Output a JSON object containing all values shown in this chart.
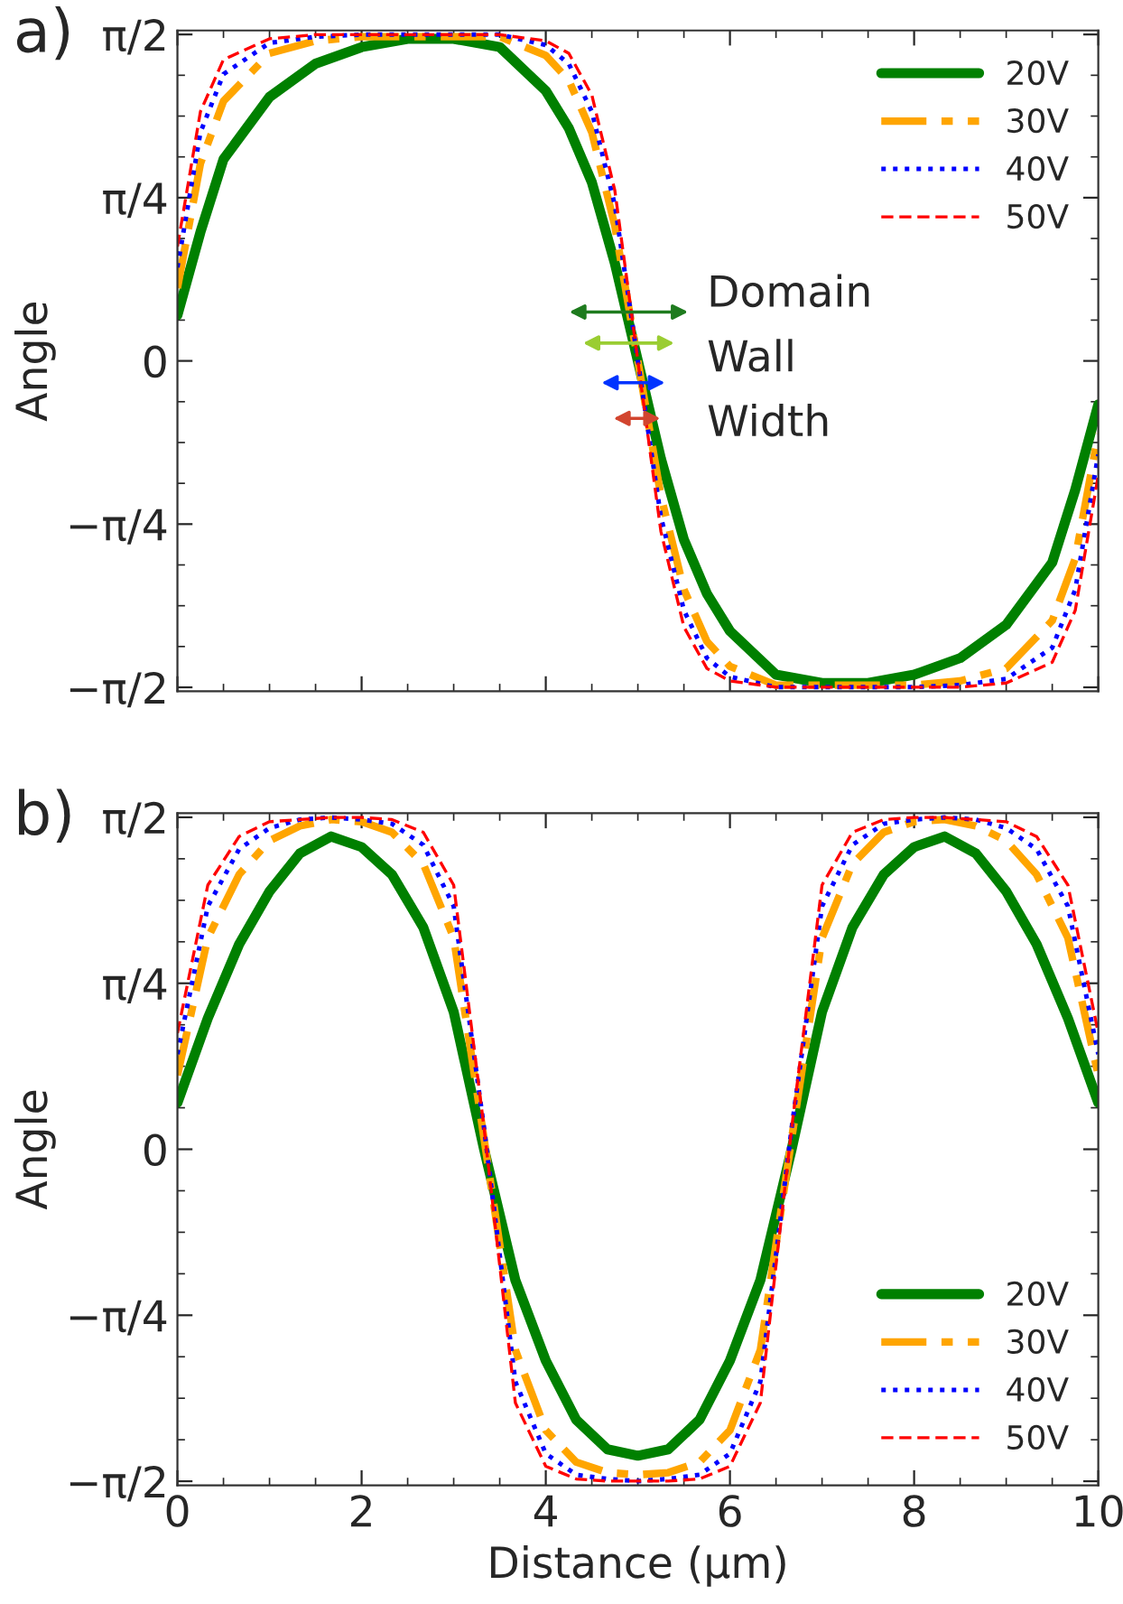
{
  "chart_data": [
    {
      "type": "line",
      "annotations": [
        "a)",
        "Domain",
        "Wall",
        "Width"
      ],
      "ylabel": "Angle",
      "xlim": [
        0,
        10
      ],
      "xticks": [
        0,
        2,
        4,
        6,
        8,
        10
      ],
      "ylim": [
        -1.59,
        1.59
      ],
      "yticks": [
        {
          "value": -1.5708,
          "label": "−π/2"
        },
        {
          "value": -0.7854,
          "label": "−π/4"
        },
        0,
        {
          "value": 0.7854,
          "label": "π/4"
        },
        {
          "value": 1.5708,
          "label": "π/2"
        }
      ],
      "tick_labels": "y",
      "legend": "top right",
      "grid": false,
      "x": [
        0,
        0.25,
        0.5,
        1,
        1.5,
        2,
        2.5,
        3,
        3.5,
        4,
        4.25,
        4.5,
        4.75,
        5,
        5.25,
        5.5,
        5.75,
        6,
        6.5,
        7,
        7.5,
        8,
        8.5,
        9,
        9.5,
        9.75,
        10
      ],
      "series": [
        {
          "name": "20V",
          "color": "#008000",
          "line_style": "solid",
          "values": [
            0.22,
            0.62,
            0.97,
            1.27,
            1.43,
            1.51,
            1.55,
            1.55,
            1.51,
            1.3,
            1.12,
            0.86,
            0.47,
            0,
            -0.47,
            -0.86,
            -1.12,
            -1.3,
            -1.51,
            -1.55,
            -1.55,
            -1.51,
            -1.43,
            -1.27,
            -0.97,
            -0.62,
            -0.21
          ]
        },
        {
          "name": "30V",
          "color": "#ffa500",
          "line_style": "dashdot",
          "values": [
            0.35,
            0.95,
            1.25,
            1.48,
            1.54,
            1.56,
            1.56,
            1.56,
            1.56,
            1.47,
            1.35,
            1.1,
            0.65,
            0,
            -0.65,
            -1.1,
            -1.35,
            -1.47,
            -1.56,
            -1.56,
            -1.56,
            -1.56,
            -1.54,
            -1.48,
            -1.25,
            -0.95,
            -0.35
          ]
        },
        {
          "name": "40V",
          "color": "#0000ff",
          "line_style": "dotted",
          "values": [
            0.45,
            1.1,
            1.38,
            1.53,
            1.56,
            1.57,
            1.57,
            1.57,
            1.57,
            1.52,
            1.43,
            1.2,
            0.75,
            0,
            -0.75,
            -1.2,
            -1.43,
            -1.52,
            -1.57,
            -1.57,
            -1.57,
            -1.57,
            -1.56,
            -1.53,
            -1.38,
            -1.1,
            -0.45
          ]
        },
        {
          "name": "50V",
          "color": "#ff0000",
          "line_style": "dashed",
          "values": [
            0.55,
            1.2,
            1.45,
            1.55,
            1.57,
            1.57,
            1.57,
            1.57,
            1.57,
            1.54,
            1.48,
            1.28,
            0.82,
            0,
            -0.82,
            -1.28,
            -1.48,
            -1.54,
            -1.57,
            -1.57,
            -1.57,
            -1.57,
            -1.57,
            -1.55,
            -1.45,
            -1.2,
            -0.55
          ]
        }
      ]
    },
    {
      "type": "line",
      "annotations": [
        "b)"
      ],
      "ylabel": "Angle",
      "xlabel": "Distance (μm)",
      "xlim": [
        0,
        10
      ],
      "xticks": [
        0,
        2,
        4,
        6,
        8,
        10
      ],
      "ylim": [
        -1.59,
        1.59
      ],
      "yticks": [
        {
          "value": -1.5708,
          "label": "−π/2"
        },
        {
          "value": -0.7854,
          "label": "−π/4"
        },
        0,
        {
          "value": 0.7854,
          "label": "π/4"
        },
        {
          "value": 1.5708,
          "label": "π/2"
        }
      ],
      "legend": "bottom right",
      "grid": false,
      "x": [
        0,
        0.33,
        0.67,
        1,
        1.33,
        1.67,
        2,
        2.33,
        2.67,
        3,
        3.33,
        3.67,
        4,
        4.33,
        4.67,
        5,
        5.33,
        5.67,
        6,
        6.33,
        6.67,
        7,
        7.33,
        7.67,
        8,
        8.33,
        8.67,
        9,
        9.33,
        9.67,
        10
      ],
      "series": [
        {
          "name": "20V",
          "color": "#008000",
          "line_style": "solid",
          "values": [
            0.22,
            0.62,
            0.97,
            1.22,
            1.4,
            1.48,
            1.43,
            1.3,
            1.05,
            0.65,
            0,
            -0.62,
            -1.0,
            -1.28,
            -1.42,
            -1.45,
            -1.42,
            -1.28,
            -1.0,
            -0.62,
            0,
            0.65,
            1.05,
            1.3,
            1.43,
            1.48,
            1.4,
            1.22,
            0.97,
            0.62,
            0.22
          ]
        },
        {
          "name": "30V",
          "color": "#ffa500",
          "line_style": "dashdot",
          "values": [
            0.35,
            1.0,
            1.3,
            1.46,
            1.53,
            1.56,
            1.55,
            1.5,
            1.35,
            1.0,
            0.05,
            -0.95,
            -1.33,
            -1.48,
            -1.53,
            -1.54,
            -1.53,
            -1.48,
            -1.33,
            -0.95,
            0.05,
            1.0,
            1.35,
            1.5,
            1.55,
            1.56,
            1.53,
            1.46,
            1.3,
            1.0,
            0.35
          ]
        },
        {
          "name": "40V",
          "color": "#0000ff",
          "line_style": "dotted",
          "values": [
            0.45,
            1.15,
            1.42,
            1.52,
            1.56,
            1.57,
            1.56,
            1.54,
            1.44,
            1.15,
            0.1,
            -1.1,
            -1.44,
            -1.54,
            -1.56,
            -1.57,
            -1.56,
            -1.54,
            -1.44,
            -1.1,
            0.1,
            1.15,
            1.44,
            1.54,
            1.56,
            1.57,
            1.56,
            1.52,
            1.42,
            1.15,
            0.45
          ]
        },
        {
          "name": "50V",
          "color": "#ff0000",
          "line_style": "dashed",
          "values": [
            0.55,
            1.25,
            1.48,
            1.55,
            1.56,
            1.57,
            1.57,
            1.56,
            1.5,
            1.25,
            0.1,
            -1.2,
            -1.5,
            -1.56,
            -1.57,
            -1.57,
            -1.57,
            -1.56,
            -1.5,
            -1.2,
            0.1,
            1.25,
            1.5,
            1.56,
            1.57,
            1.57,
            1.56,
            1.55,
            1.48,
            1.25,
            0.55
          ]
        }
      ]
    }
  ]
}
